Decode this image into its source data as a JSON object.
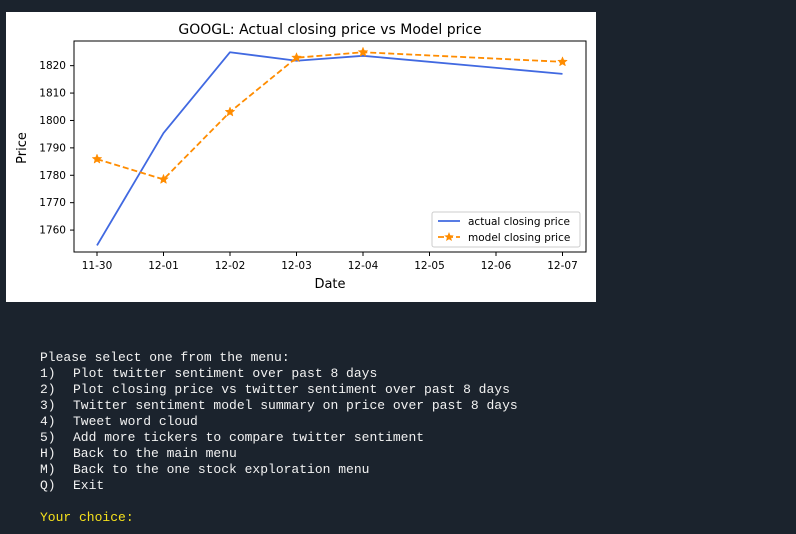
{
  "colors": {
    "terminal_background": "#1b232d",
    "terminal_text": "#f2f2f2",
    "prompt_text": "#f5e11c",
    "actual_series": "#4169e1",
    "model_series": "#ff8c00"
  },
  "chart_data": {
    "type": "line",
    "title": "GOOGL: Actual closing price vs Model price",
    "xlabel": "Date",
    "ylabel": "Price",
    "x_ticks": [
      "11-30",
      "12-01",
      "12-02",
      "12-03",
      "12-04",
      "12-05",
      "12-06",
      "12-07"
    ],
    "y_ticks": [
      1760,
      1770,
      1780,
      1790,
      1800,
      1810,
      1820
    ],
    "ylim": [
      1752,
      1829
    ],
    "grid": false,
    "legend_position": "lower-right",
    "series": [
      {
        "name": "actual closing price",
        "style": "solid",
        "marker": "none",
        "color": "#4169e1",
        "x": [
          "11-30",
          "12-01",
          "12-02",
          "12-03",
          "12-04",
          "12-07"
        ],
        "values": [
          1754.4,
          1795.4,
          1824.9,
          1821.8,
          1823.6,
          1817.0
        ]
      },
      {
        "name": "model closing price",
        "style": "dashed",
        "marker": "star",
        "color": "#ff8c00",
        "x": [
          "11-30",
          "12-01",
          "12-02",
          "12-03",
          "12-04",
          "12-07"
        ],
        "values": [
          1785.9,
          1778.5,
          1803.1,
          1822.9,
          1824.9,
          1821.4
        ]
      }
    ]
  },
  "menu": {
    "prompt": "Please select one from the menu:",
    "items": [
      {
        "key": "1)",
        "label": "Plot twitter sentiment over past 8 days"
      },
      {
        "key": "2)",
        "label": "Plot closing price vs twitter sentiment over past 8 days"
      },
      {
        "key": "3)",
        "label": "Twitter sentiment model summary on price over past 8 days"
      },
      {
        "key": "4)",
        "label": "Tweet word cloud"
      },
      {
        "key": "5)",
        "label": "Add more tickers to compare twitter sentiment"
      },
      {
        "key": "H)",
        "label": "Back to the main menu"
      },
      {
        "key": "M)",
        "label": "Back to the one stock exploration menu"
      },
      {
        "key": "Q)",
        "label": "Exit"
      }
    ]
  },
  "choice_prompt": "Your choice:"
}
